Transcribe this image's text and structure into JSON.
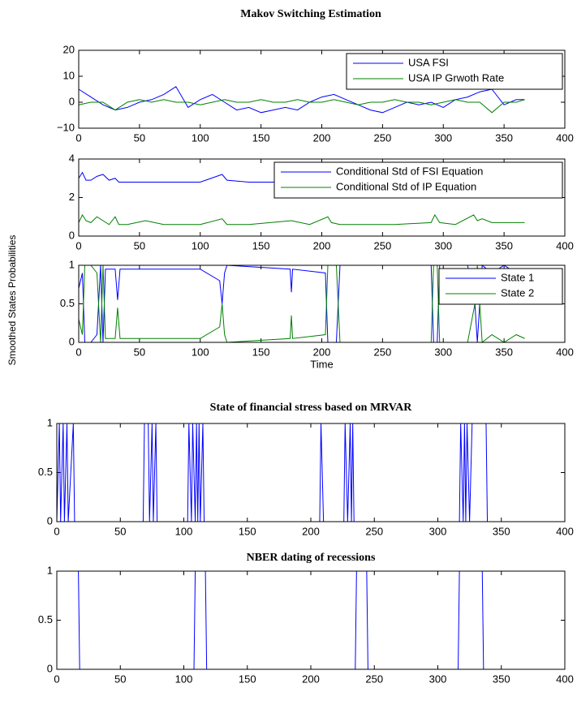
{
  "chart_data": [
    {
      "type": "line",
      "title": "Makov Switching Estimation",
      "x": [
        0,
        10,
        20,
        30,
        40,
        50,
        60,
        70,
        80,
        90,
        100,
        110,
        120,
        130,
        140,
        150,
        160,
        170,
        180,
        190,
        200,
        210,
        220,
        230,
        240,
        250,
        260,
        270,
        280,
        290,
        300,
        310,
        320,
        330,
        340,
        350,
        360,
        367
      ],
      "series": [
        {
          "name": "USA FSI",
          "color": "#0000ff",
          "values": [
            5,
            2,
            -1,
            -3,
            -2,
            0,
            1,
            3,
            6,
            -2,
            1,
            3,
            0,
            -3,
            -2,
            -4,
            -3,
            -2,
            -3,
            0,
            2,
            3,
            1,
            -1,
            -3,
            -4,
            -2,
            0,
            -1,
            0,
            -2,
            1,
            2,
            4,
            5,
            -1,
            1,
            1
          ]
        },
        {
          "name": "USA IP Grwoth Rate",
          "color": "#008000",
          "values": [
            -1,
            0,
            0,
            -3,
            0,
            1,
            0,
            1,
            0,
            0,
            -1,
            0,
            1,
            0,
            0,
            1,
            0,
            0,
            1,
            0,
            0,
            1,
            0,
            -1,
            0,
            0,
            1,
            0,
            0,
            -1,
            0,
            1,
            0,
            0,
            -4,
            0,
            0,
            1
          ]
        }
      ],
      "xlim": [
        0,
        400
      ],
      "ylim": [
        -10,
        20
      ],
      "xticks": [
        0,
        50,
        100,
        150,
        200,
        250,
        300,
        350,
        400
      ],
      "yticks": [
        {
          "value": -10,
          "label": "−10"
        },
        0,
        10,
        20
      ],
      "legend": "upper right"
    },
    {
      "type": "line",
      "x": [
        0,
        3,
        6,
        10,
        15,
        20,
        25,
        30,
        33,
        40,
        55,
        70,
        100,
        118,
        122,
        140,
        175,
        190,
        205,
        208,
        215,
        260,
        290,
        293,
        297,
        310,
        325,
        328,
        332,
        340,
        350,
        367
      ],
      "series": [
        {
          "name": "Conditional Std of FSI Equation",
          "color": "#0000ff",
          "values": [
            3.0,
            3.3,
            2.9,
            2.9,
            3.1,
            3.2,
            2.9,
            3.0,
            2.8,
            2.8,
            2.8,
            2.8,
            2.8,
            3.2,
            2.9,
            2.8,
            2.8,
            2.8,
            2.8,
            2.8,
            2.8,
            2.8,
            2.8,
            2.8,
            2.8,
            2.8,
            2.8,
            2.8,
            2.8,
            2.8,
            2.8,
            2.8
          ]
        },
        {
          "name": "Conditional Std of IP Equation",
          "color": "#008000",
          "values": [
            0.7,
            1.1,
            0.8,
            0.7,
            1.0,
            0.8,
            0.6,
            1.0,
            0.6,
            0.6,
            0.8,
            0.6,
            0.6,
            0.9,
            0.6,
            0.6,
            0.8,
            0.6,
            1.0,
            0.7,
            0.6,
            0.6,
            0.7,
            1.1,
            0.7,
            0.6,
            1.1,
            0.8,
            0.9,
            0.7,
            0.7,
            0.7
          ]
        }
      ],
      "xlim": [
        0,
        400
      ],
      "ylim": [
        0,
        4
      ],
      "xticks": [
        0,
        50,
        100,
        150,
        200,
        250,
        300,
        350,
        400
      ],
      "yticks": [
        0,
        2,
        4
      ],
      "legend": "upper right"
    },
    {
      "type": "line",
      "xlabel": "Time",
      "ylabel": "Smoothed States Probabilities",
      "x": [
        0,
        3,
        5,
        10,
        15,
        18,
        20,
        22,
        30,
        32,
        34,
        50,
        70,
        100,
        116,
        118,
        120,
        122,
        174,
        175,
        176,
        203,
        205,
        212,
        215,
        290,
        292,
        295,
        297,
        320,
        326,
        328,
        330,
        332,
        340,
        350,
        360,
        367
      ],
      "series": [
        {
          "name": "State 1",
          "color": "#0000ff",
          "values": [
            0.7,
            0.9,
            0,
            0,
            0.1,
            1,
            0,
            0.95,
            0.95,
            0.55,
            0.95,
            0.95,
            0.95,
            0.95,
            0.8,
            0.5,
            0.9,
            1,
            0.95,
            0.65,
            0.95,
            0.9,
            0,
            0,
            1,
            1,
            0,
            0,
            1,
            1,
            0.5,
            0,
            0.5,
            1,
            0.9,
            1,
            0.9,
            0.95
          ]
        },
        {
          "name": "State 2",
          "color": "#008000",
          "values": [
            0.3,
            0.1,
            1,
            1,
            0.9,
            0,
            1,
            0.05,
            0.05,
            0.45,
            0.05,
            0.05,
            0.05,
            0.05,
            0.2,
            0.5,
            0.1,
            0,
            0.05,
            0.35,
            0.05,
            0.1,
            1,
            1,
            0,
            0,
            1,
            1,
            0,
            0,
            0.5,
            1,
            0.5,
            0,
            0.1,
            0,
            0.1,
            0.05
          ]
        }
      ],
      "xlim": [
        0,
        400
      ],
      "ylim": [
        0,
        1
      ],
      "xticks": [
        0,
        50,
        100,
        150,
        200,
        250,
        300,
        350,
        400
      ],
      "yticks": [
        0,
        0.5,
        1
      ],
      "legend": "upper right"
    },
    {
      "type": "line",
      "title": "State of financial stress based on MRVAR",
      "x": [
        0,
        2,
        3,
        5,
        6,
        8,
        9,
        13,
        14,
        68,
        69,
        72,
        73,
        75,
        76,
        78,
        79,
        103,
        104,
        106,
        107,
        109,
        110,
        111,
        112,
        113,
        115,
        116,
        207,
        208,
        210,
        226,
        227,
        229,
        231,
        232,
        233,
        234,
        317,
        318,
        320,
        321,
        322,
        323,
        325,
        327,
        338,
        339,
        367
      ],
      "series": [
        {
          "color": "#0000ff",
          "values": [
            0,
            1,
            0,
            1,
            0,
            1,
            0,
            1,
            0,
            0,
            1,
            1,
            0,
            1,
            0,
            1,
            0,
            0,
            1,
            0,
            1,
            0,
            1,
            0,
            1,
            0,
            1,
            0,
            0,
            1,
            0,
            0,
            1,
            0,
            1,
            0,
            1,
            0,
            0,
            1,
            0,
            1,
            0,
            1,
            0,
            1,
            1,
            0,
            0
          ]
        }
      ],
      "xlim": [
        0,
        400
      ],
      "ylim": [
        0,
        1
      ],
      "xticks": [
        0,
        50,
        100,
        150,
        200,
        250,
        300,
        350,
        400
      ],
      "yticks": [
        0,
        0.5,
        1
      ]
    },
    {
      "type": "line",
      "title": "NBER dating of recessions",
      "x": [
        0,
        17,
        18,
        108,
        109,
        117,
        118,
        235,
        236,
        244,
        245,
        316,
        317,
        335,
        336,
        367
      ],
      "series": [
        {
          "color": "#0000ff",
          "values": [
            1,
            1,
            0,
            0,
            1,
            1,
            0,
            0,
            1,
            1,
            0,
            0,
            1,
            1,
            0,
            0
          ]
        }
      ],
      "xlim": [
        0,
        400
      ],
      "ylim": [
        0,
        1
      ],
      "xticks": [
        0,
        50,
        100,
        150,
        200,
        250,
        300,
        350,
        400
      ],
      "yticks": [
        0,
        0.5,
        1
      ]
    }
  ]
}
